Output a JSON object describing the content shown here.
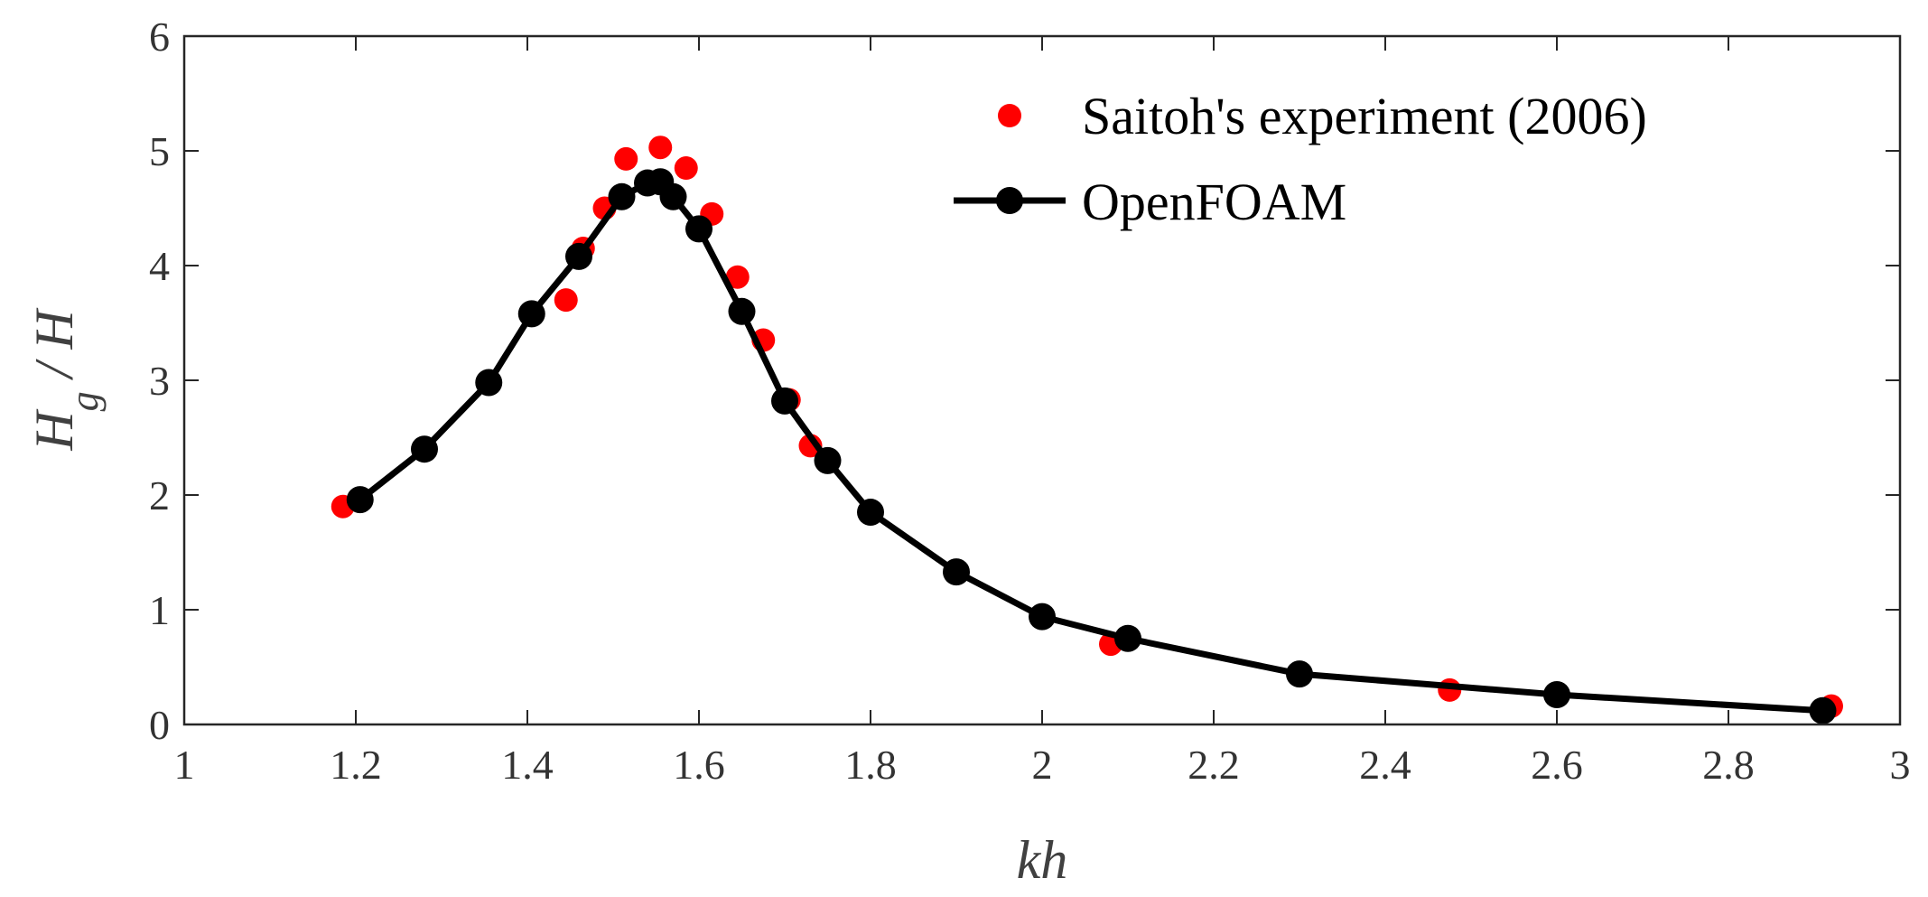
{
  "chart_data": {
    "type": "scatter",
    "title": "",
    "xlabel": "kh",
    "ylabel_main": "H",
    "ylabel_sub": "g",
    "ylabel_tail": " / H",
    "xlim": [
      1,
      3
    ],
    "ylim": [
      0,
      6
    ],
    "grid": false,
    "legend_position": "top-right",
    "x_ticks": [
      1,
      1.2,
      1.4,
      1.6,
      1.8,
      2,
      2.2,
      2.4,
      2.6,
      2.8,
      3
    ],
    "x_tick_labels": [
      "1",
      "1.2",
      "1.4",
      "1.6",
      "1.8",
      "2",
      "2.2",
      "2.4",
      "2.6",
      "2.8",
      "3"
    ],
    "y_ticks": [
      0,
      1,
      2,
      3,
      4,
      5,
      6
    ],
    "y_tick_labels": [
      "0",
      "1",
      "2",
      "3",
      "4",
      "5",
      "6"
    ],
    "series": [
      {
        "name": "Saitoh's experiment (2006)",
        "style": "markers",
        "color": "#ff0000",
        "x": [
          1.185,
          1.445,
          1.465,
          1.49,
          1.515,
          1.555,
          1.585,
          1.615,
          1.645,
          1.675,
          1.705,
          1.73,
          2.08,
          2.475,
          2.92
        ],
        "y": [
          1.9,
          3.7,
          4.15,
          4.5,
          4.93,
          5.03,
          4.85,
          4.45,
          3.9,
          3.35,
          2.83,
          2.43,
          0.7,
          0.3,
          0.16
        ]
      },
      {
        "name": "OpenFOAM",
        "style": "line+markers",
        "color": "#000000",
        "x": [
          1.205,
          1.28,
          1.355,
          1.405,
          1.46,
          1.51,
          1.54,
          1.555,
          1.57,
          1.6,
          1.65,
          1.7,
          1.75,
          1.8,
          1.9,
          2.0,
          2.1,
          2.3,
          2.6,
          2.91
        ],
        "y": [
          1.96,
          2.4,
          2.98,
          3.58,
          4.08,
          4.6,
          4.72,
          4.73,
          4.6,
          4.32,
          3.6,
          2.82,
          2.3,
          1.85,
          1.33,
          0.94,
          0.75,
          0.44,
          0.26,
          0.12
        ]
      }
    ]
  }
}
